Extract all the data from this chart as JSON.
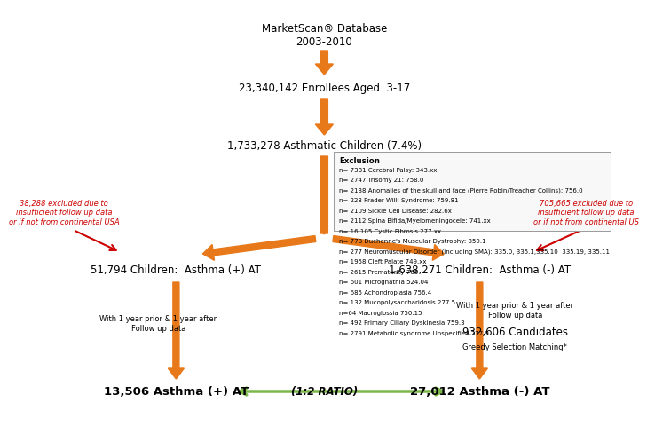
{
  "bg_color": "#ffffff",
  "arrow_color": "#E8791A",
  "green_color": "#7ab648",
  "red_color": "#cc0000",
  "db_text": "MarketScan® Database\n2003-2010",
  "enrollees_text": "23,340,142 Enrollees Aged  3-17",
  "asthmatic_text": "1,733,278 Asthmatic Children (7.4%)",
  "excl_title": "Exclusion",
  "excl_lines": [
    "n= 7381 Cerebral Palsy: 343.xx",
    "n= 2747 Trisomy 21: 758.0",
    "n= 2138 Anomalies of the skull and face (Pierre Robin/Treacher Collins): 756.0",
    "n= 228 Prader Willi Syndrome: 759.81",
    "n= 2109 Sickle Cell Disease: 282.6x",
    "n= 2112 Spina Bifida/Myelomeningocele: 741.xx",
    "n= 16,105 Cystic Fibrosis 277.xx",
    "n= 778 Duchenne's Muscular Dystrophy: 359.1",
    "n= 277 Neuromuscular Disorder (including SMA): 335.0, 335.1,335.10  335.19, 335.11",
    "n= 1958 Cleft Palate 749.xx",
    "n= 2615 Prematurity 765",
    "n= 601 Micrognathia 524.04",
    "n= 685 Achondroplasia 756.4",
    "n= 132 Mucopolysaccharidosis 277.5",
    "n=64 Macroglossia 750.15",
    "n= 492 Primary Ciliary Dyskinesia 759.3",
    "n= 2791 Metabolic syndrome Unspecified 277.9"
  ],
  "left_box_text": "51,794 Children:  Asthma (+) AT",
  "right_box_text": "1,638,271 Children:  Asthma (-) AT",
  "left_note": "With 1 year prior & 1 year after\nFollow up data",
  "right_note": "With 1 year prior & 1 year after\nFollow up data",
  "candidates_text": "932,606 Candidates",
  "greedy_text": "Greedy Selection Matching*",
  "final_left": "13,506 Asthma (+) AT",
  "final_right": "27,012 Asthma (-) AT",
  "ratio_text": "(1:2 RATIO)",
  "left_excl_text": "38,288 excluded due to\ninsufficient follow up data\nor if not from continental USA",
  "right_excl_text": "705,665 excluded due to\ninsufficient follow up data\nor if not from continental US"
}
